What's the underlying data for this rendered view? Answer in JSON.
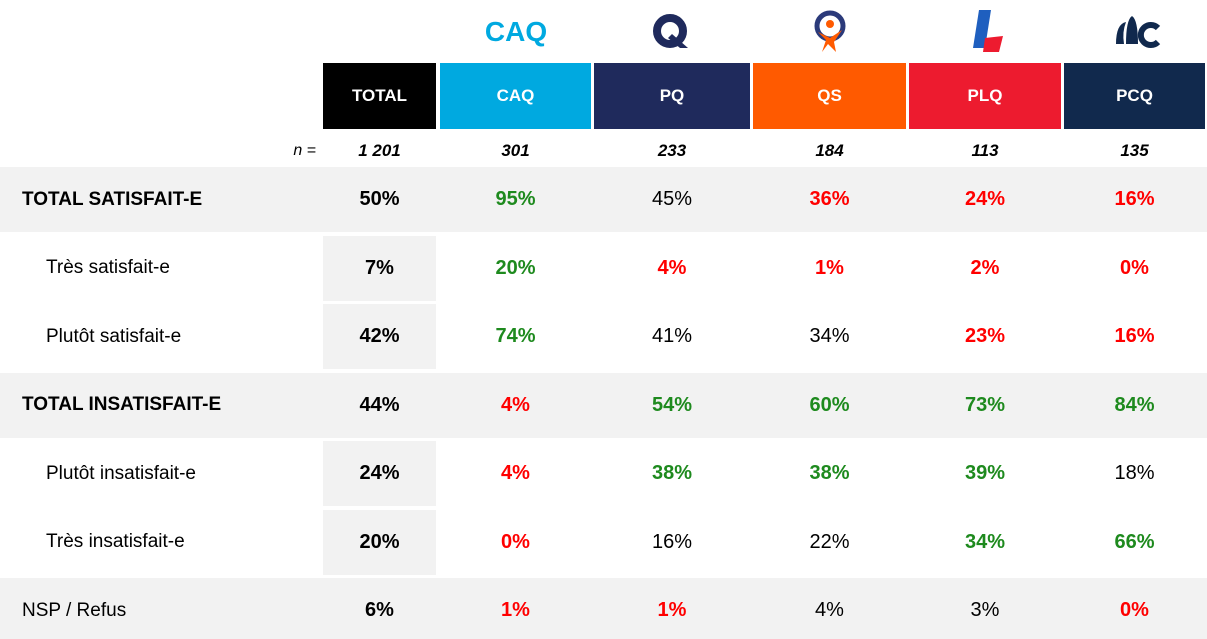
{
  "header": {
    "caq_logo": "CAQ",
    "columns": [
      "TOTAL",
      "CAQ",
      "PQ",
      "QS",
      "PLQ",
      "PCQ"
    ],
    "colors": [
      "#000000",
      "#00a9e0",
      "#1f2a5c",
      "#ff5a00",
      "#ed1b2f",
      "#11294d"
    ]
  },
  "n": {
    "label": "n =",
    "values": [
      "1 201",
      "301",
      "233",
      "184",
      "113",
      "135"
    ]
  },
  "table": {
    "rows": [
      {
        "label": "TOTAL SATISFAIT-E",
        "bold": true,
        "indent": false,
        "shaded": true,
        "values": [
          "50%",
          "95%",
          "45%",
          "36%",
          "24%",
          "16%"
        ],
        "colors": [
          "#000000",
          "#1e8a1e",
          "#000000",
          "#ff0000",
          "#ff0000",
          "#ff0000"
        ]
      },
      {
        "label": "Très satisfait-e",
        "bold": false,
        "indent": true,
        "shaded": false,
        "values": [
          "7%",
          "20%",
          "4%",
          "1%",
          "2%",
          "0%"
        ],
        "colors": [
          "#000000",
          "#1e8a1e",
          "#ff0000",
          "#ff0000",
          "#ff0000",
          "#ff0000"
        ]
      },
      {
        "label": "Plutôt satisfait-e",
        "bold": false,
        "indent": true,
        "shaded": false,
        "values": [
          "42%",
          "74%",
          "41%",
          "34%",
          "23%",
          "16%"
        ],
        "colors": [
          "#000000",
          "#1e8a1e",
          "#000000",
          "#000000",
          "#ff0000",
          "#ff0000"
        ]
      },
      {
        "label": "TOTAL INSATISFAIT-E",
        "bold": true,
        "indent": false,
        "shaded": true,
        "values": [
          "44%",
          "4%",
          "54%",
          "60%",
          "73%",
          "84%"
        ],
        "colors": [
          "#000000",
          "#ff0000",
          "#1e8a1e",
          "#1e8a1e",
          "#1e8a1e",
          "#1e8a1e"
        ]
      },
      {
        "label": "Plutôt insatisfait-e",
        "bold": false,
        "indent": true,
        "shaded": false,
        "values": [
          "24%",
          "4%",
          "38%",
          "38%",
          "39%",
          "18%"
        ],
        "colors": [
          "#000000",
          "#ff0000",
          "#1e8a1e",
          "#1e8a1e",
          "#1e8a1e",
          "#000000"
        ]
      },
      {
        "label": "Très insatisfait-e",
        "bold": false,
        "indent": true,
        "shaded": false,
        "values": [
          "20%",
          "0%",
          "16%",
          "22%",
          "34%",
          "66%"
        ],
        "colors": [
          "#000000",
          "#ff0000",
          "#000000",
          "#000000",
          "#1e8a1e",
          "#1e8a1e"
        ]
      },
      {
        "label": "NSP / Refus",
        "bold": false,
        "indent": false,
        "shaded": true,
        "values": [
          "6%",
          "1%",
          "1%",
          "4%",
          "3%",
          "0%"
        ],
        "colors": [
          "#000000",
          "#ff0000",
          "#ff0000",
          "#000000",
          "#000000",
          "#ff0000"
        ]
      }
    ]
  }
}
